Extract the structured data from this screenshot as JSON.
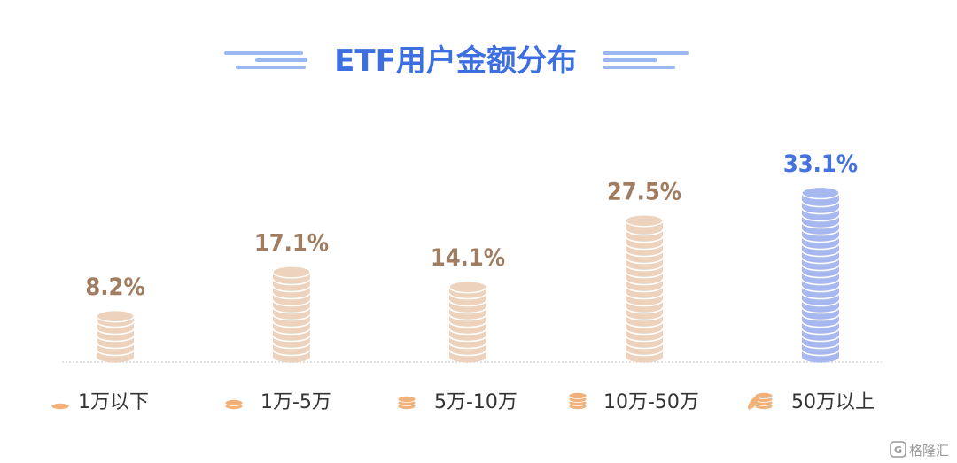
{
  "chart_data": {
    "type": "bar",
    "title": "ETF用户金额分布",
    "categories": [
      "1万以下",
      "1万-5万",
      "5万-10万",
      "10万-50万",
      "50万以上"
    ],
    "values": [
      8.2,
      17.1,
      14.1,
      27.5,
      33.1
    ],
    "value_labels": [
      "8.2%",
      "17.1%",
      "14.1%",
      "27.5%",
      "33.1%"
    ],
    "unit": "%",
    "highlight_index": 4,
    "legend_position": "bottom",
    "grid": false,
    "colors": {
      "title": "#3d6fe0",
      "title_lines": "#9ab8f2",
      "coin": "#edd3bd",
      "coin_line": "#ffffff",
      "coin_highlight": "#a6b8ef",
      "value_label": "#a07c60",
      "value_label_highlight": "#4472e0",
      "legend_icon": "#f0b27a",
      "legend_text": "#333333",
      "baseline": "#e2e2e2"
    }
  },
  "watermark": {
    "text": "格隆汇",
    "icon": "g-logo-icon"
  }
}
